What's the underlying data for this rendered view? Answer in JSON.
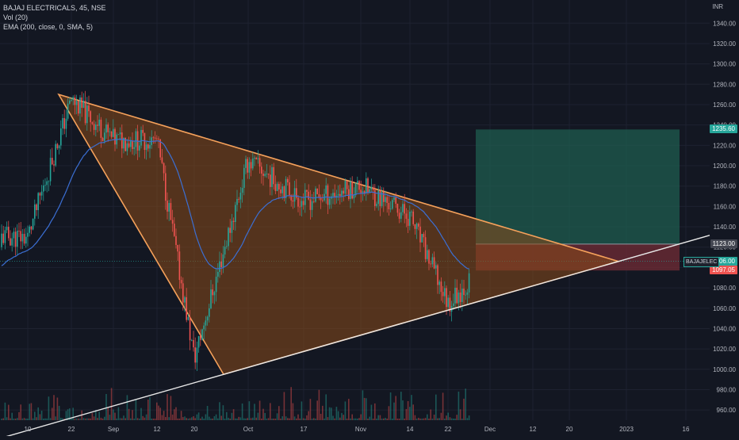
{
  "legend": {
    "title": "BAJAJ ELECTRICALS, 45, NSE",
    "vol": "Vol (20)",
    "ema": "EMA (200, close, 0, SMA, 5)"
  },
  "currency": "INR",
  "price_tags": {
    "target": "1235.60",
    "entry": "1123.00",
    "current": "1106.00",
    "stop": "1097.05",
    "symbol": "BAJAJELEC"
  },
  "colors": {
    "bg": "#131722",
    "up": "#26a69a",
    "down": "#ef5350",
    "triangle_fill": "#8a4a1a",
    "triangle_line": "#f5a15b",
    "ema": "#3b6fd4",
    "target_zone": "#1f5c4f",
    "stop_zone": "#6b2a34",
    "support": "#e8e8e8"
  },
  "chart_data": {
    "type": "candlestick",
    "title": "BAJAJ ELECTRICALS, 45, NSE",
    "ylabel": "INR",
    "ylim": [
      950,
      1355
    ],
    "y_ticks": [
      960,
      980,
      1000,
      1020,
      1040,
      1060,
      1080,
      1100,
      1120,
      1140,
      1160,
      1180,
      1200,
      1220,
      1240,
      1260,
      1280,
      1300,
      1320,
      1340
    ],
    "x_ticks": [
      "10",
      "22",
      "Sep",
      "12",
      "20",
      "Oct",
      "17",
      "Nov",
      "14",
      "22",
      "Dec",
      "12",
      "20",
      "2023",
      "16"
    ],
    "price_path": [
      {
        "x": "10",
        "price": 1130
      },
      {
        "x": "22",
        "price": 1265
      },
      {
        "x": "Sep",
        "price": 1225
      },
      {
        "x": "12",
        "price": 1225
      },
      {
        "x": "20",
        "price": 1010
      },
      {
        "x": "Oct",
        "price": 1205
      },
      {
        "x": "17",
        "price": 1165
      },
      {
        "x": "Nov",
        "price": 1180
      },
      {
        "x": "14",
        "price": 1150
      },
      {
        "x": "22",
        "price": 1065
      },
      {
        "x": "Dec",
        "price": 1106
      }
    ],
    "last_price": 1106.0,
    "position": {
      "entry": 1123.0,
      "target": 1235.6,
      "stop": 1097.05
    }
  }
}
